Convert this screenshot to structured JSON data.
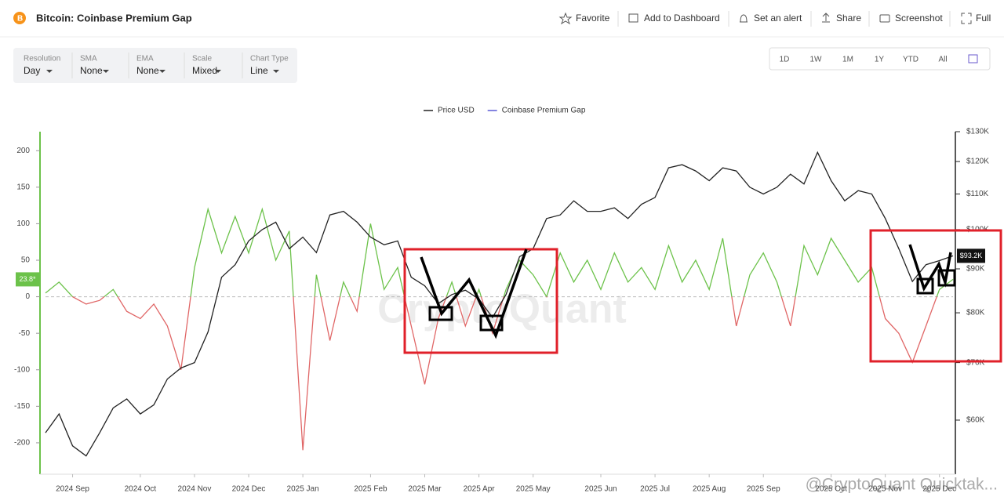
{
  "header": {
    "title": "Bitcoin: Coinbase Premium Gap",
    "actions": [
      "Favorite",
      "Add to Dashboard",
      "Set an alert",
      "Share",
      "Screenshot",
      "Full"
    ]
  },
  "controls": [
    {
      "label": "Resolution",
      "value": "Day"
    },
    {
      "label": "SMA",
      "value": "None"
    },
    {
      "label": "EMA",
      "value": "None"
    },
    {
      "label": "Scale",
      "value": "Mixed"
    },
    {
      "label": "Chart Type",
      "value": "Line"
    }
  ],
  "ranges": [
    "1D",
    "1W",
    "1M",
    "1Y",
    "YTD",
    "All"
  ],
  "watermark": "CryptoQuant",
  "credit": "@CryptoQuant Quicktak...",
  "chart_data": {
    "type": "line",
    "legend": "top-center",
    "zero_line": true,
    "categories": [
      null,
      null,
      "2024 Sep",
      null,
      null,
      null,
      null,
      "2024 Oct",
      null,
      null,
      null,
      "2024 Nov",
      null,
      null,
      null,
      "2024 Dec",
      null,
      null,
      null,
      "2025 Jan",
      null,
      null,
      null,
      null,
      "2025 Feb",
      null,
      null,
      null,
      "2025 Mar",
      null,
      null,
      null,
      "2025 Apr",
      null,
      null,
      null,
      "2025 May",
      null,
      null,
      null,
      null,
      "2025 Jun",
      null,
      null,
      null,
      "2025 Jul",
      null,
      null,
      null,
      "2025 Aug",
      null,
      null,
      null,
      "2025 Sep",
      null,
      null,
      null,
      null,
      "2025 Oct",
      null,
      null,
      null,
      "2025 Nov",
      null,
      null,
      null,
      "2025 Dec",
      null
    ],
    "series": [
      {
        "name": "Price USD",
        "color": "#222222",
        "axis": "y2",
        "last_label": "$93.2K",
        "values": [
          58000,
          61000,
          56000,
          54500,
          58000,
          62000,
          63500,
          61000,
          62500,
          67000,
          69000,
          70000,
          76000,
          88000,
          91000,
          97000,
          100000,
          102000,
          95000,
          98000,
          94000,
          104000,
          105000,
          102000,
          98000,
          96000,
          97000,
          88000,
          86000,
          82000,
          84000,
          85000,
          83000,
          79000,
          84000,
          93000,
          95000,
          103000,
          104000,
          108000,
          105000,
          105000,
          106000,
          103000,
          107000,
          109000,
          118000,
          119000,
          117000,
          114000,
          118000,
          117000,
          112000,
          110000,
          112000,
          116000,
          113000,
          123000,
          114000,
          108000,
          111000,
          110000,
          103000,
          95000,
          87000,
          91000,
          92000,
          93200
        ]
      },
      {
        "name": "Coinbase Premium Gap",
        "color": "#5b5bd6",
        "positive_color": "#6cc24a",
        "negative_color": "#e06666",
        "last_label": "23.8*",
        "values": [
          5,
          20,
          0,
          -10,
          -5,
          10,
          -20,
          -30,
          -10,
          -40,
          -100,
          40,
          120,
          60,
          110,
          60,
          120,
          50,
          90,
          -210,
          30,
          -60,
          20,
          -20,
          100,
          10,
          40,
          -40,
          -120,
          -30,
          20,
          -40,
          10,
          -50,
          10,
          50,
          30,
          0,
          60,
          20,
          50,
          10,
          60,
          20,
          40,
          10,
          70,
          20,
          50,
          10,
          80,
          -40,
          30,
          60,
          20,
          -40,
          70,
          30,
          80,
          50,
          20,
          40,
          -30,
          -50,
          -90,
          -40,
          10,
          23.8
        ]
      }
    ],
    "ylim": [
      -243,
      226
    ],
    "yticks": [
      -200,
      -150,
      -100,
      -50,
      0,
      50,
      100,
      150,
      200
    ],
    "y2lim": [
      51900,
      130000
    ],
    "y2scale": "log",
    "y2ticks": [
      {
        "value": 60000,
        "label": "$60K"
      },
      {
        "value": 70000,
        "label": "$70K"
      },
      {
        "value": 80000,
        "label": "$80K"
      },
      {
        "value": 90000,
        "label": "$90K"
      },
      {
        "value": 100000,
        "label": "$100K"
      },
      {
        "value": 110000,
        "label": "$110K"
      },
      {
        "value": 120000,
        "label": "$120K"
      },
      {
        "value": 130000,
        "label": "$130K"
      }
    ]
  }
}
